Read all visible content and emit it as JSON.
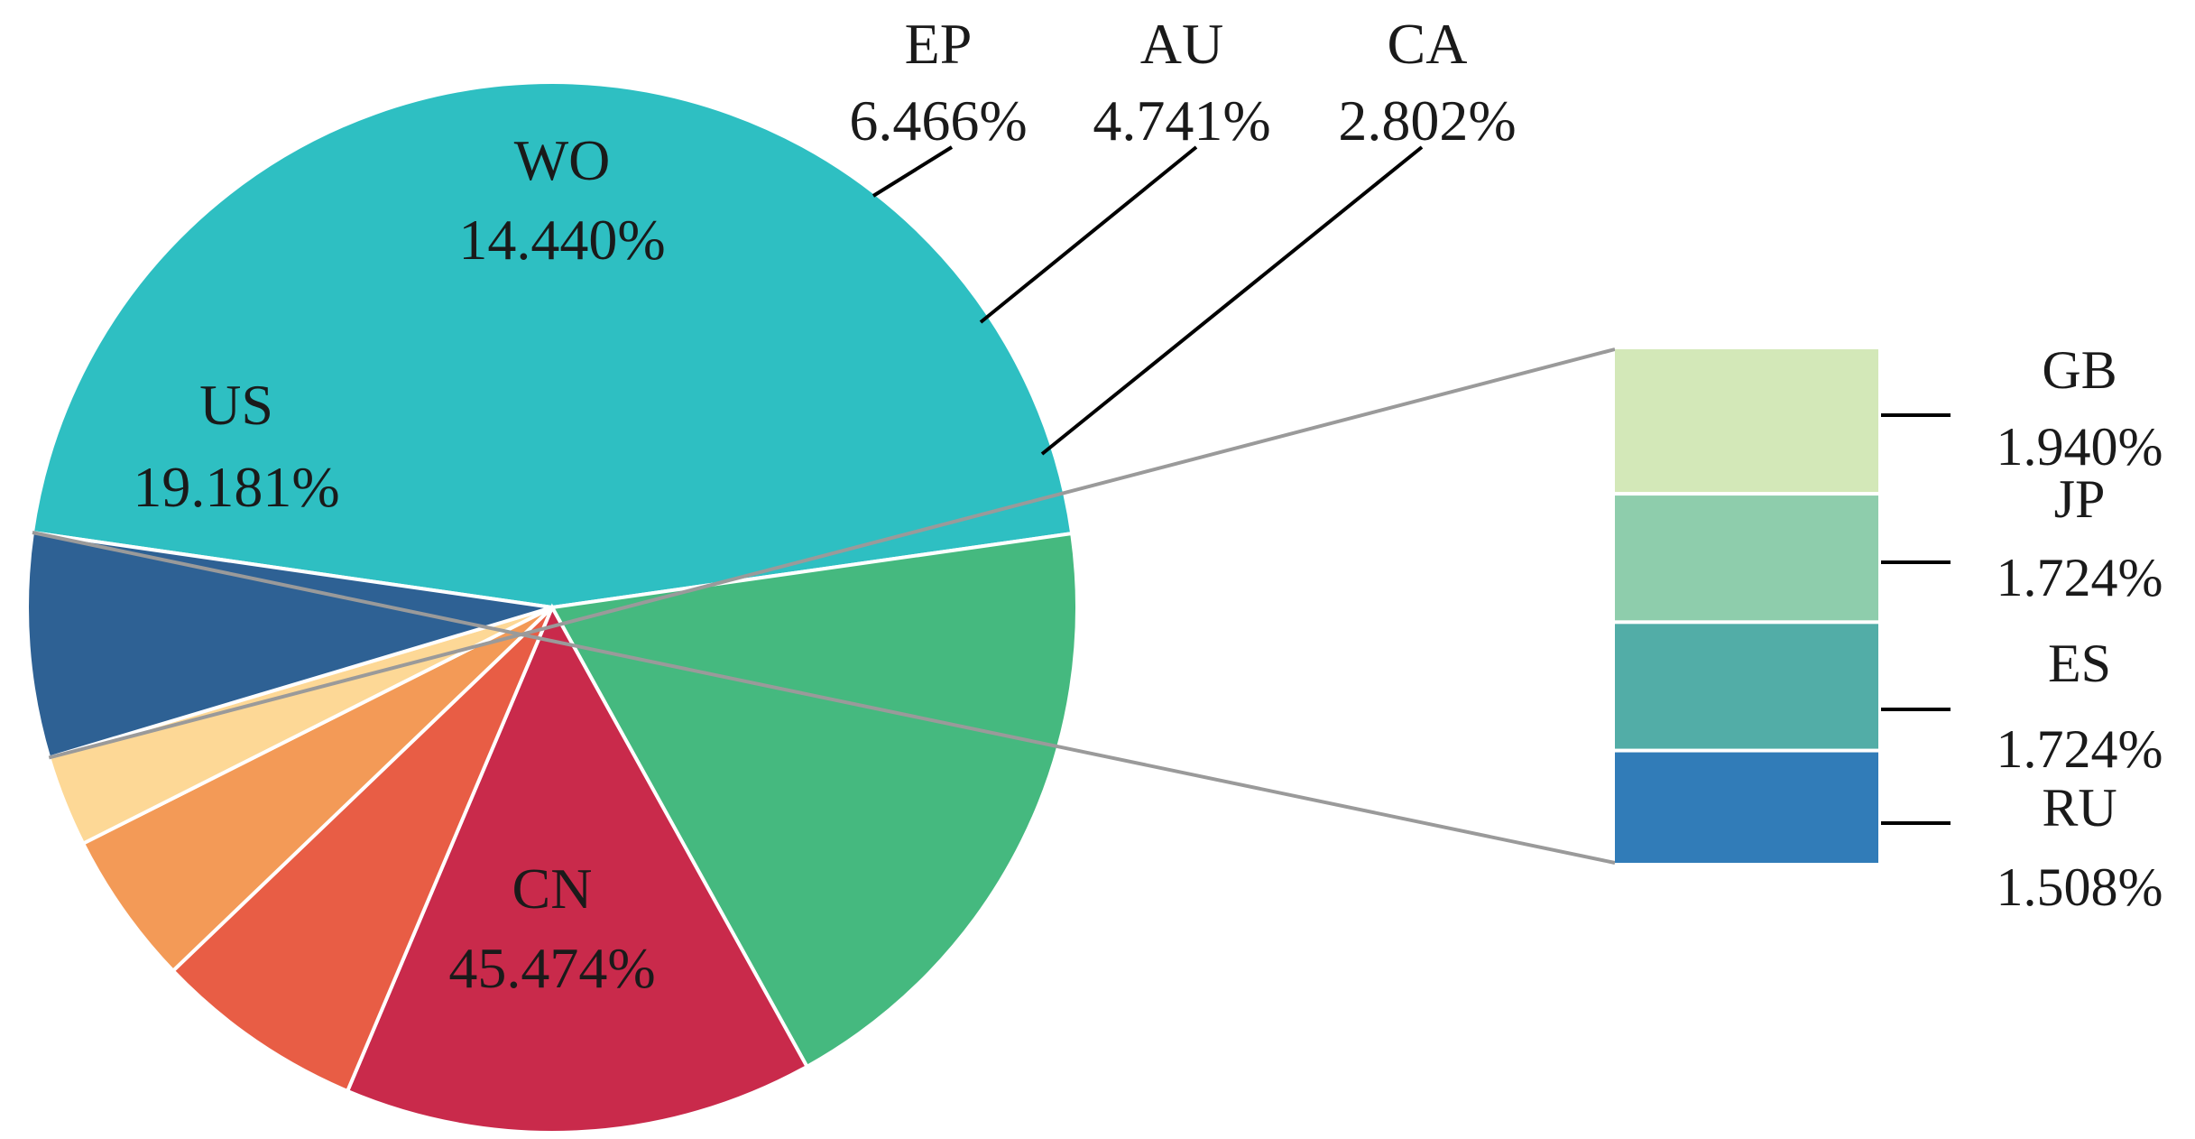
{
  "chart_data": {
    "type": "pie",
    "slices": [
      {
        "label": "CN",
        "value": 45.474,
        "value_text": "45.474%",
        "color": "#2ebfc2"
      },
      {
        "label": "US",
        "value": 19.181,
        "value_text": "19.181%",
        "color": "#45b97f"
      },
      {
        "label": "WO",
        "value": 14.44,
        "value_text": "14.440%",
        "color": "#c92a4b"
      },
      {
        "label": "EP",
        "value": 6.466,
        "value_text": "6.466%",
        "color": "#e85d45"
      },
      {
        "label": "AU",
        "value": 4.741,
        "value_text": "4.741%",
        "color": "#f39a57"
      },
      {
        "label": "CA",
        "value": 2.802,
        "value_text": "2.802%",
        "color": "#fdd896"
      }
    ],
    "other": {
      "value": 6.896,
      "color": "#2e6194",
      "breakdown": [
        {
          "label": "GB",
          "value": 1.94,
          "value_text": "1.940%",
          "color": "#d3e8b8"
        },
        {
          "label": "JP",
          "value": 1.724,
          "value_text": "1.724%",
          "color": "#8ecdac"
        },
        {
          "label": "ES",
          "value": 1.724,
          "value_text": "1.724%",
          "color": "#52ada7"
        },
        {
          "label": "RU",
          "value": 1.508,
          "value_text": "1.508%",
          "color": "#317cb8"
        }
      ]
    },
    "legend": "none"
  }
}
